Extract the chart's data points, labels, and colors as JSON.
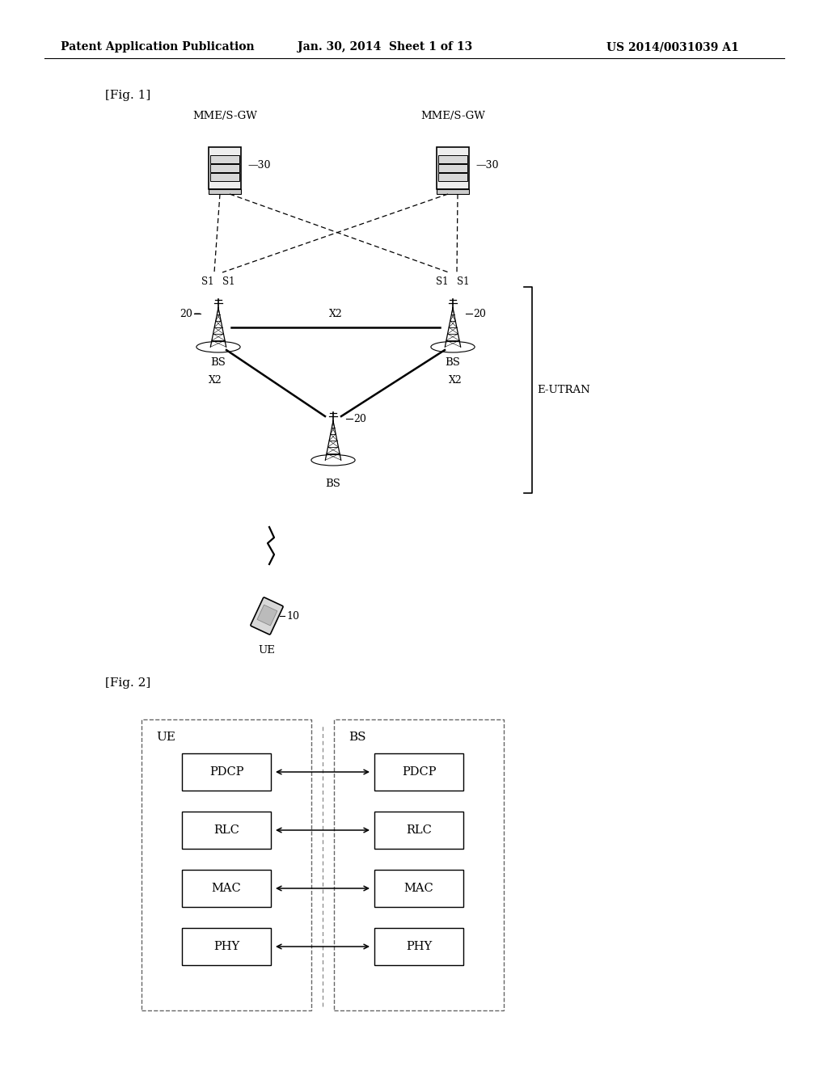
{
  "bg_color": "#ffffff",
  "header_text": "Patent Application Publication",
  "header_date": "Jan. 30, 2014  Sheet 1 of 13",
  "header_patent": "US 2014/0031039 A1",
  "fig1_label": "[Fig. 1]",
  "fig2_label": "[Fig. 2]",
  "e_utran_label": "E-UTRAN",
  "mme_label": "MME/S-GW",
  "bs_label": "BS",
  "ue_label": "UE",
  "ue_layers": [
    "PDCP",
    "RLC",
    "MAC",
    "PHY"
  ],
  "bs_layers": [
    "PDCP",
    "RLC",
    "MAC",
    "PHY"
  ]
}
